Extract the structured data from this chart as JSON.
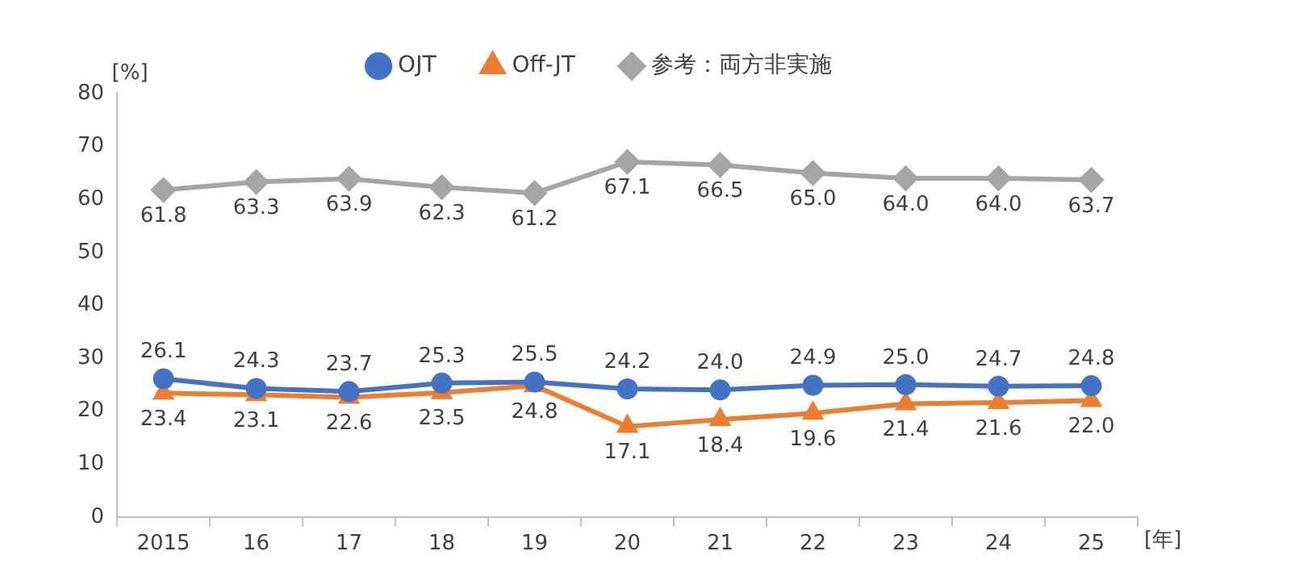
{
  "chart_data": {
    "type": "line",
    "xlabel": "[年]",
    "ylabel": "[%]",
    "categories": [
      "2015",
      "16",
      "17",
      "18",
      "19",
      "20",
      "21",
      "22",
      "23",
      "24",
      "25"
    ],
    "series": [
      {
        "name": "OJT",
        "color": "#4472c4",
        "marker": "circle",
        "values": [
          26.1,
          24.3,
          23.7,
          25.3,
          25.5,
          24.2,
          24.0,
          24.9,
          25.0,
          24.7,
          24.8
        ],
        "value_labels": [
          "26.1",
          "24.3",
          "23.7",
          "25.3",
          "25.5",
          "24.2",
          "24.0",
          "24.9",
          "25.0",
          "24.7",
          "24.8"
        ]
      },
      {
        "name": "Off-JT",
        "color": "#ed7d31",
        "marker": "triangle",
        "values": [
          23.4,
          23.1,
          22.6,
          23.5,
          24.8,
          17.1,
          18.4,
          19.6,
          21.4,
          21.6,
          22.0
        ],
        "value_labels": [
          "23.4",
          "23.1",
          "22.6",
          "23.5",
          "24.8",
          "17.1",
          "18.4",
          "19.6",
          "21.4",
          "21.6",
          "22.0"
        ]
      },
      {
        "name": "参考：両方非実施",
        "color": "#a5a5a5",
        "marker": "diamond",
        "values": [
          61.8,
          63.3,
          63.9,
          62.3,
          61.2,
          67.1,
          66.5,
          65.0,
          64.0,
          64.0,
          63.7
        ],
        "value_labels": [
          "61.8",
          "63.3",
          "63.9",
          "62.3",
          "61.2",
          "67.1",
          "66.5",
          "65.0",
          "64.0",
          "64.0",
          "63.7"
        ]
      }
    ],
    "ylim": [
      0,
      80
    ],
    "yticks": [
      0,
      10,
      20,
      30,
      40,
      50,
      60,
      70,
      80
    ],
    "grid": false,
    "legend": "top"
  }
}
